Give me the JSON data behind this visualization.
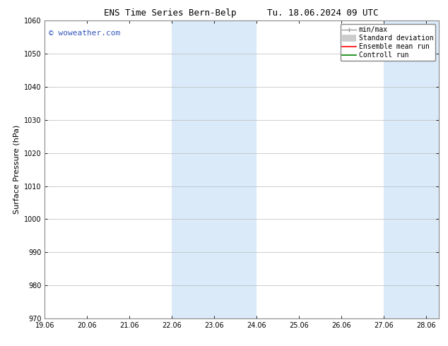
{
  "title_left": "ENS Time Series Bern-Belp",
  "title_right": "Tu. 18.06.2024 09 UTC",
  "ylabel": "Surface Pressure (hPa)",
  "ylim": [
    970,
    1060
  ],
  "yticks": [
    970,
    980,
    990,
    1000,
    1010,
    1020,
    1030,
    1040,
    1050,
    1060
  ],
  "xlim_start": 19.0,
  "xlim_end": 28.3,
  "xtick_labels": [
    "19.06",
    "20.06",
    "21.06",
    "22.06",
    "23.06",
    "24.06",
    "25.06",
    "26.06",
    "27.06",
    "28.06"
  ],
  "xtick_positions": [
    19.0,
    20.0,
    21.0,
    22.0,
    23.0,
    24.0,
    25.0,
    26.0,
    27.0,
    28.0
  ],
  "shaded_bands": [
    {
      "x_start": 22.0,
      "x_end": 23.0
    },
    {
      "x_start": 23.0,
      "x_end": 24.0
    },
    {
      "x_start": 27.0,
      "x_end": 28.0
    },
    {
      "x_start": 28.0,
      "x_end": 28.3
    }
  ],
  "band_color": "#daeaf8",
  "watermark_text": "© woweather.com",
  "watermark_color": "#3355bb",
  "bg_color": "#ffffff",
  "grid_color": "#bbbbbb",
  "spine_color": "#888888",
  "title_fontsize": 9,
  "axis_fontsize": 8,
  "tick_fontsize": 7,
  "legend_fontsize": 7,
  "watermark_fontsize": 8
}
